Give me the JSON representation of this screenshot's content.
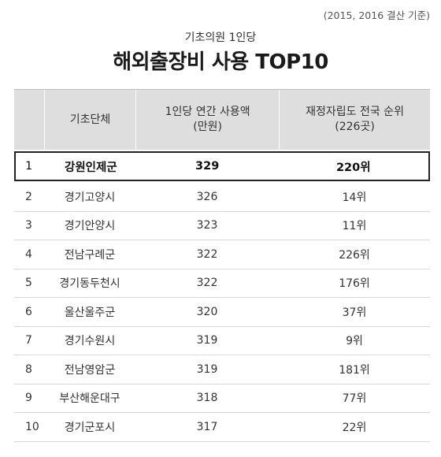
{
  "note": "(2015, 2016 결산 기준)",
  "subtitle": "기초의원 1인당",
  "title": "해외출장비 사용 TOP10",
  "headers": {
    "rank": "",
    "name": "기초단체",
    "amount_line1": "1인당 연간 사용액",
    "amount_line2": "(만원)",
    "fin_line1": "재정자립도 전국 순위",
    "fin_line2": "(226곳)"
  },
  "chart_data": {
    "type": "table",
    "title": "해외출장비 사용 TOP10",
    "subtitle": "기초의원 1인당",
    "columns": [
      "",
      "기초단체",
      "1인당 연간 사용액 (만원)",
      "재정자립도 전국 순위 (226곳)"
    ],
    "rows": [
      {
        "rank": "1",
        "name": "강원인제군",
        "amount": "329",
        "fin_rank": "220위"
      },
      {
        "rank": "2",
        "name": "경기고양시",
        "amount": "326",
        "fin_rank": "14위"
      },
      {
        "rank": "3",
        "name": "경기안양시",
        "amount": "323",
        "fin_rank": "11위"
      },
      {
        "rank": "4",
        "name": "전남구례군",
        "amount": "322",
        "fin_rank": "226위"
      },
      {
        "rank": "5",
        "name": "경기동두천시",
        "amount": "322",
        "fin_rank": "176위"
      },
      {
        "rank": "6",
        "name": "울산울주군",
        "amount": "320",
        "fin_rank": "37위"
      },
      {
        "rank": "7",
        "name": "경기수원시",
        "amount": "319",
        "fin_rank": "9위"
      },
      {
        "rank": "8",
        "name": "전남영암군",
        "amount": "319",
        "fin_rank": "181위"
      },
      {
        "rank": "9",
        "name": "부산해운대구",
        "amount": "318",
        "fin_rank": "77위"
      },
      {
        "rank": "10",
        "name": "경기군포시",
        "amount": "317",
        "fin_rank": "22위"
      }
    ],
    "highlight_row": 0
  }
}
